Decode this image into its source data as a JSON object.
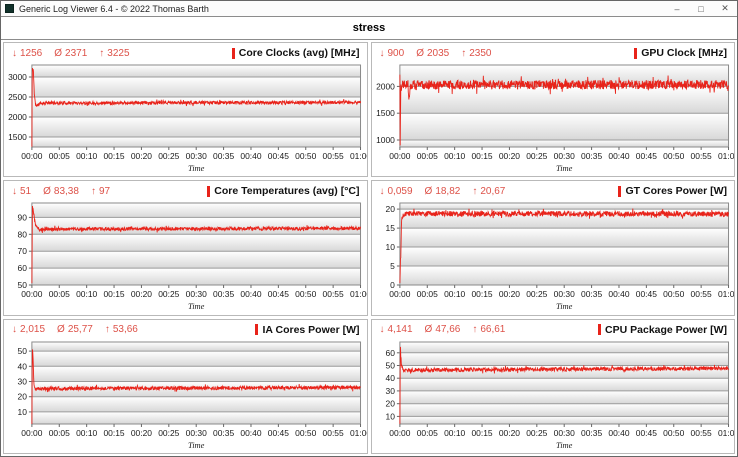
{
  "window": {
    "title": "Generic Log Viewer 6.4 - © 2022 Thomas Barth",
    "minimize": "–",
    "maximize": "□",
    "close": "✕"
  },
  "header": {
    "title": "stress"
  },
  "icons": {
    "min": "↓",
    "avg": "Ø",
    "max": "↑"
  },
  "colors": {
    "line": "#e8231a",
    "stats_text": "#dd5148",
    "grid_line": "#9a9a9a",
    "plot_border": "#8a8a8a",
    "band_low": "#d7d7d7",
    "tick_text": "#1a1a1a"
  },
  "axis": {
    "xlabel": "Time",
    "xticks": [
      "00:00",
      "00:05",
      "00:10",
      "00:15",
      "00:20",
      "00:25",
      "00:30",
      "00:35",
      "00:40",
      "00:45",
      "00:50",
      "00:55",
      "01:00"
    ],
    "duration_s": 3600
  },
  "chart_data": [
    {
      "type": "line",
      "title": "Core Clocks (avg) [MHz]",
      "stats": {
        "min": "1256",
        "avg": "2371",
        "max": "3225"
      },
      "stats_num": {
        "min": 1256,
        "avg": 2371,
        "max": 3225
      },
      "ylim": [
        1250,
        3300
      ],
      "yticks": [
        1500,
        2000,
        2500,
        3000
      ],
      "anchors": [
        [
          0,
          1256
        ],
        [
          4,
          3225
        ],
        [
          16,
          3180
        ],
        [
          26,
          2600
        ],
        [
          40,
          2300
        ],
        [
          60,
          2280
        ],
        [
          90,
          2350
        ],
        [
          3600,
          2365
        ]
      ],
      "noise_amp": 40,
      "seed": 11
    },
    {
      "type": "line",
      "title": "GPU Clock [MHz]",
      "stats": {
        "min": "900",
        "avg": "2035",
        "max": "2350"
      },
      "stats_num": {
        "min": 900,
        "avg": 2035,
        "max": 2350
      },
      "ylim": [
        870,
        2400
      ],
      "yticks": [
        1000,
        1500,
        2000
      ],
      "anchors": [
        [
          0,
          2200
        ],
        [
          3,
          900
        ],
        [
          9,
          1900
        ],
        [
          22,
          2050
        ],
        [
          88,
          2060
        ],
        [
          100,
          1700
        ],
        [
          112,
          2030
        ],
        [
          3600,
          2035
        ]
      ],
      "noise_amp": 85,
      "seed": 22
    },
    {
      "type": "line",
      "title": "Core Temperatures (avg) [°C]",
      "stats": {
        "min": "51",
        "avg": "83,38",
        "max": "97"
      },
      "stats_num": {
        "min": 51,
        "avg": 83.38,
        "max": 97
      },
      "ylim": [
        50,
        98.5
      ],
      "yticks": [
        50,
        60,
        70,
        80,
        90
      ],
      "anchors": [
        [
          0,
          51
        ],
        [
          6,
          97
        ],
        [
          18,
          93
        ],
        [
          40,
          85
        ],
        [
          90,
          82.5
        ],
        [
          150,
          83
        ],
        [
          3600,
          83.5
        ]
      ],
      "noise_amp": 1.0,
      "seed": 33
    },
    {
      "type": "line",
      "title": "GT Cores Power [W]",
      "stats": {
        "min": "0,059",
        "avg": "18,82",
        "max": "20,67"
      },
      "stats_num": {
        "min": 0.059,
        "avg": 18.82,
        "max": 20.67
      },
      "ylim": [
        0,
        21.6
      ],
      "yticks": [
        0,
        5,
        10,
        15,
        20
      ],
      "anchors": [
        [
          0,
          0.059
        ],
        [
          6,
          6.8
        ],
        [
          11,
          7.2
        ],
        [
          16,
          16
        ],
        [
          30,
          18
        ],
        [
          60,
          18.8
        ],
        [
          3600,
          18.7
        ]
      ],
      "noise_amp": 0.7,
      "seed": 44
    },
    {
      "type": "line",
      "title": "IA Cores Power [W]",
      "stats": {
        "min": "2,015",
        "avg": "25,77",
        "max": "53,66"
      },
      "stats_num": {
        "min": 2.015,
        "avg": 25.77,
        "max": 53.66
      },
      "ylim": [
        2,
        56
      ],
      "yticks": [
        10,
        20,
        30,
        40,
        50
      ],
      "anchors": [
        [
          0,
          2.015
        ],
        [
          5,
          53.66
        ],
        [
          12,
          47
        ],
        [
          22,
          28
        ],
        [
          40,
          25.3
        ],
        [
          3600,
          26
        ]
      ],
      "noise_amp": 1.2,
      "seed": 55
    },
    {
      "type": "line",
      "title": "CPU Package Power [W]",
      "stats": {
        "min": "4,141",
        "avg": "47,66",
        "max": "66,61"
      },
      "stats_num": {
        "min": 4.141,
        "avg": 47.66,
        "max": 66.61
      },
      "ylim": [
        4,
        68.5
      ],
      "yticks": [
        10,
        20,
        30,
        40,
        50,
        60
      ],
      "anchors": [
        [
          0,
          4.141
        ],
        [
          5,
          66.61
        ],
        [
          11,
          58
        ],
        [
          20,
          49
        ],
        [
          40,
          46.5
        ],
        [
          3600,
          47.8
        ]
      ],
      "noise_amp": 1.5,
      "seed": 66
    }
  ]
}
